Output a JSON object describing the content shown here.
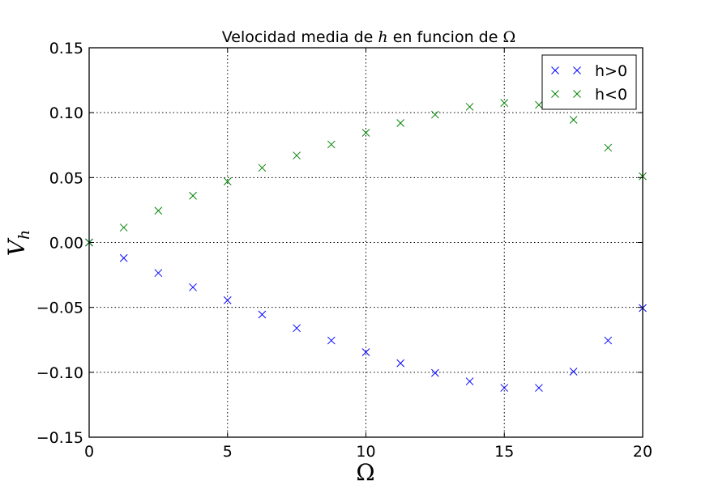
{
  "chart_data": {
    "type": "scatter",
    "title": {
      "prefix": "Velocidad media de ",
      "var": "h",
      "middle": " en funcion de ",
      "omega": "Ω"
    },
    "xlabel": "Ω",
    "ylabel": {
      "base": "V",
      "sub": "h"
    },
    "xlim": [
      0,
      20
    ],
    "ylim": [
      -0.15,
      0.15
    ],
    "xticks": [
      0,
      5,
      10,
      15,
      20
    ],
    "xtick_labels": [
      "0",
      "5",
      "10",
      "15",
      "20"
    ],
    "yticks": [
      -0.15,
      -0.1,
      -0.05,
      0.0,
      0.05,
      0.1,
      0.15
    ],
    "ytick_labels": [
      "−0.15",
      "−0.10",
      "−0.05",
      "0.00",
      "0.05",
      "0.10",
      "0.15"
    ],
    "grid": true,
    "legend_position": "top-right",
    "x": [
      0,
      1.25,
      2.5,
      3.75,
      5,
      6.25,
      7.5,
      8.75,
      10,
      11.25,
      12.5,
      13.75,
      15,
      16.25,
      17.5,
      18.75,
      20
    ],
    "series": [
      {
        "name": "h>0",
        "color": "#0000ff",
        "marker": "x",
        "values": [
          0.0,
          -0.012,
          -0.0235,
          -0.0345,
          -0.0445,
          -0.0555,
          -0.066,
          -0.0755,
          -0.0845,
          -0.093,
          -0.1005,
          -0.107,
          -0.112,
          -0.112,
          -0.0995,
          -0.0755,
          -0.0505
        ]
      },
      {
        "name": "h<0",
        "color": "#008000",
        "marker": "x",
        "values": [
          0.0,
          0.0115,
          0.0245,
          0.036,
          0.047,
          0.0575,
          0.067,
          0.0755,
          0.0845,
          0.092,
          0.0985,
          0.1045,
          0.1075,
          0.106,
          0.0945,
          0.073,
          0.051
        ]
      }
    ]
  }
}
